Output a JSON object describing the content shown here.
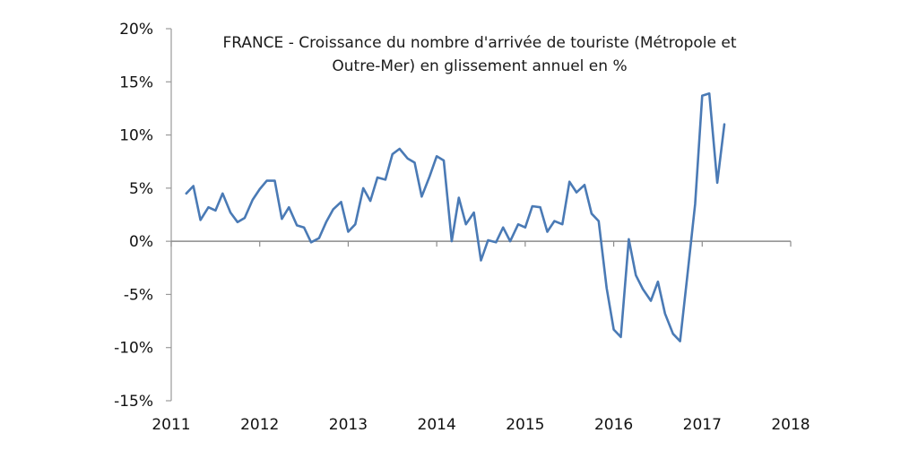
{
  "chart_data": {
    "type": "line",
    "title_lines": [
      "FRANCE - Croissance du nombre d'arrivée de touriste (Métropole et",
      "Outre-Mer) en glissement annuel en %"
    ],
    "xlabel": "",
    "ylabel": "",
    "xlim": [
      2011,
      2018
    ],
    "ylim": [
      -15,
      20
    ],
    "x_ticks": [
      "2011",
      "2012",
      "2013",
      "2014",
      "2015",
      "2016",
      "2017",
      "2018"
    ],
    "y_ticks": [
      "20%",
      "15%",
      "10%",
      "5%",
      "0%",
      "-5%",
      "-10%",
      "-15%"
    ],
    "y_tick_values": [
      20,
      15,
      10,
      5,
      0,
      -5,
      -10,
      -15
    ],
    "grid": false,
    "line_color": "#4a7ab5",
    "series": [
      {
        "x": [
          2011.17,
          2011.25,
          2011.33,
          2011.42,
          2011.5,
          2011.58,
          2011.67,
          2011.75,
          2011.83,
          2011.92,
          2012.0,
          2012.08,
          2012.17,
          2012.25,
          2012.33,
          2012.42,
          2012.5,
          2012.58,
          2012.67,
          2012.75,
          2012.83,
          2012.92,
          2013.0,
          2013.08,
          2013.17,
          2013.25,
          2013.33,
          2013.42,
          2013.5,
          2013.58,
          2013.67,
          2013.75,
          2013.83,
          2013.92,
          2014.0,
          2014.08,
          2014.17,
          2014.25,
          2014.33,
          2014.42,
          2014.5,
          2014.58,
          2014.67,
          2014.75,
          2014.83,
          2014.92,
          2015.0,
          2015.08,
          2015.17,
          2015.25,
          2015.33,
          2015.42,
          2015.5,
          2015.58,
          2015.67,
          2015.75,
          2015.83,
          2015.92,
          2016.0,
          2016.08,
          2016.17,
          2016.25,
          2016.33,
          2016.42,
          2016.5,
          2016.58,
          2016.67,
          2016.75,
          2016.83,
          2016.92,
          2017.0,
          2017.08,
          2017.17,
          2017.25
        ],
        "values": [
          4.5,
          5.2,
          2.0,
          3.2,
          2.9,
          4.5,
          2.7,
          1.8,
          2.2,
          3.9,
          4.9,
          5.7,
          5.7,
          2.1,
          3.2,
          1.5,
          1.3,
          -0.1,
          0.3,
          1.8,
          3.0,
          3.7,
          0.9,
          1.6,
          5.0,
          3.8,
          6.0,
          5.8,
          8.2,
          8.7,
          7.8,
          7.4,
          4.2,
          6.1,
          8.0,
          7.6,
          0.0,
          4.1,
          1.6,
          2.7,
          -1.8,
          0.1,
          -0.1,
          1.3,
          0.0,
          1.6,
          1.3,
          3.3,
          3.2,
          0.9,
          1.9,
          1.6,
          5.6,
          4.6,
          5.3,
          2.6,
          1.9,
          -4.4,
          -8.3,
          -9.0,
          0.2,
          -3.2,
          -4.5,
          -5.6,
          -3.8,
          -6.8,
          -8.7,
          -9.4,
          -3.4,
          3.5,
          13.7,
          13.9,
          5.5,
          11.0
        ]
      }
    ]
  }
}
